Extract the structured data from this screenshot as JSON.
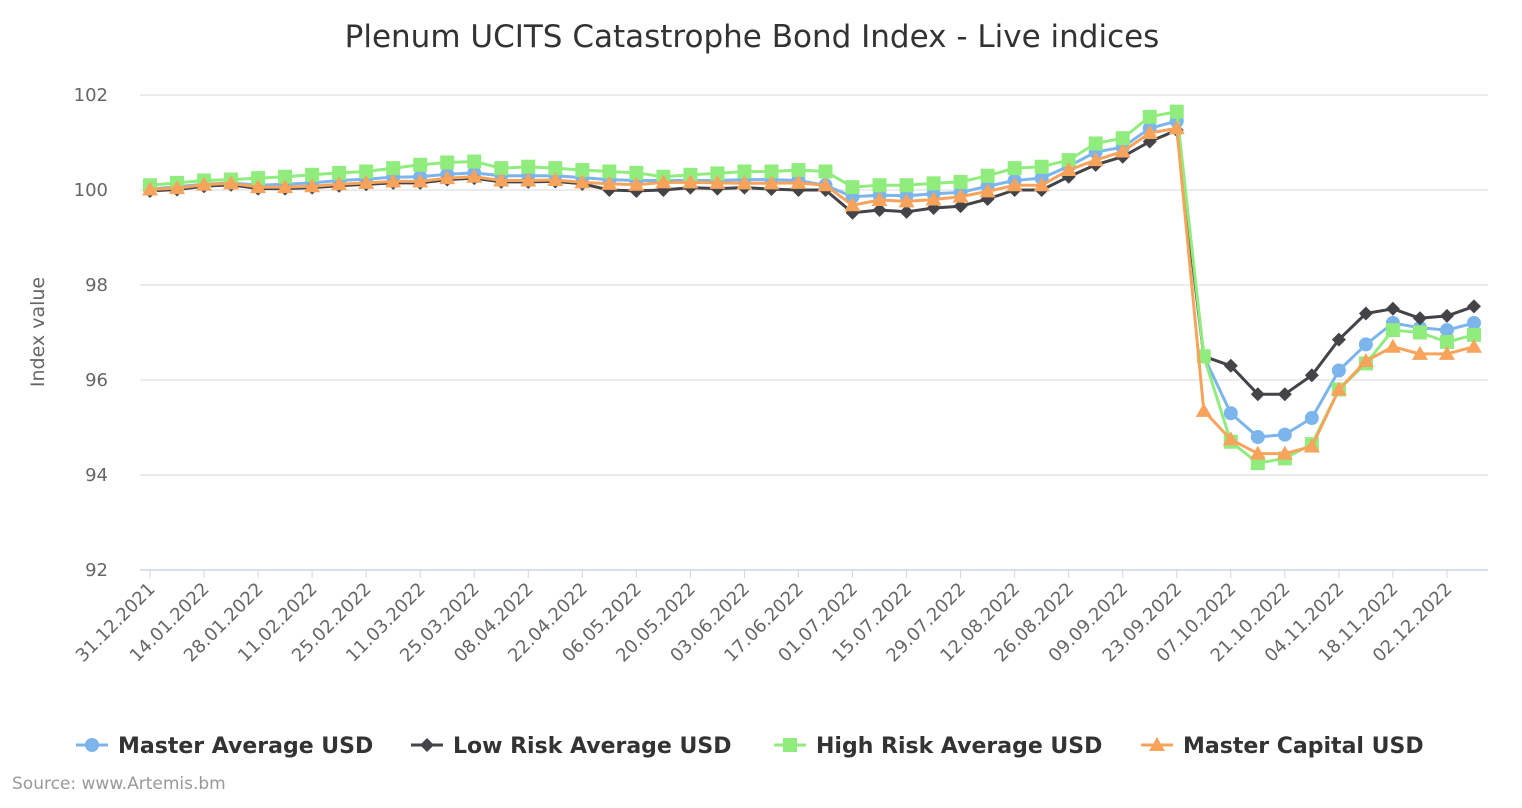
{
  "chart_data": {
    "type": "line",
    "title": "Plenum UCITS Catastrophe Bond Index - Live indices",
    "xlabel": "",
    "ylabel": "Index value",
    "ylim": [
      92,
      102
    ],
    "yticks": [
      92,
      94,
      96,
      98,
      100,
      102
    ],
    "grid": true,
    "legend_placement": "bottom",
    "x": [
      "31.12.2021",
      "07.01.2022",
      "14.01.2022",
      "21.01.2022",
      "28.01.2022",
      "04.02.2022",
      "11.02.2022",
      "18.02.2022",
      "25.02.2022",
      "04.03.2022",
      "11.03.2022",
      "18.03.2022",
      "25.03.2022",
      "01.04.2022",
      "08.04.2022",
      "15.04.2022",
      "22.04.2022",
      "29.04.2022",
      "06.05.2022",
      "13.05.2022",
      "20.05.2022",
      "27.05.2022",
      "03.06.2022",
      "10.06.2022",
      "17.06.2022",
      "24.06.2022",
      "01.07.2022",
      "08.07.2022",
      "15.07.2022",
      "22.07.2022",
      "29.07.2022",
      "05.08.2022",
      "12.08.2022",
      "19.08.2022",
      "26.08.2022",
      "02.09.2022",
      "09.09.2022",
      "16.09.2022",
      "23.09.2022",
      "30.09.2022",
      "07.10.2022",
      "14.10.2022",
      "21.10.2022",
      "28.10.2022",
      "04.11.2022",
      "11.11.2022",
      "18.11.2022",
      "25.11.2022",
      "02.12.2022",
      "09.12.2022"
    ],
    "xtick_labels": [
      "31.12.2021",
      "14.01.2022",
      "28.01.2022",
      "11.02.2022",
      "25.02.2022",
      "11.03.2022",
      "25.03.2022",
      "08.04.2022",
      "22.04.2022",
      "06.05.2022",
      "20.05.2022",
      "03.06.2022",
      "17.06.2022",
      "01.07.2022",
      "15.07.2022",
      "29.07.2022",
      "12.08.2022",
      "26.08.2022",
      "09.09.2022",
      "23.09.2022",
      "07.10.2022",
      "21.10.2022",
      "04.11.2022",
      "18.11.2022",
      "02.12.2022"
    ],
    "series": [
      {
        "name": "Master Average USD",
        "color": "#7cb5ec",
        "marker": "circle",
        "values": [
          100.02,
          100.07,
          100.12,
          100.15,
          100.1,
          100.12,
          100.15,
          100.2,
          100.23,
          100.27,
          100.28,
          100.33,
          100.36,
          100.3,
          100.3,
          100.3,
          100.26,
          100.22,
          100.2,
          100.2,
          100.2,
          100.2,
          100.22,
          100.22,
          100.2,
          100.1,
          99.86,
          99.89,
          99.88,
          99.92,
          99.95,
          100.08,
          100.2,
          100.25,
          100.5,
          100.8,
          100.9,
          101.3,
          101.45,
          96.5,
          95.3,
          94.8,
          94.85,
          95.2,
          96.2,
          96.75,
          97.2,
          97.1,
          97.05,
          97.2
        ]
      },
      {
        "name": "Low Risk Average USD",
        "color": "#434348",
        "marker": "diamond",
        "values": [
          99.98,
          100.01,
          100.08,
          100.11,
          100.03,
          100.03,
          100.05,
          100.09,
          100.12,
          100.15,
          100.15,
          100.22,
          100.25,
          100.17,
          100.17,
          100.18,
          100.13,
          100.0,
          99.98,
          100.0,
          100.05,
          100.03,
          100.05,
          100.02,
          100.0,
          100.0,
          99.52,
          99.58,
          99.54,
          99.62,
          99.66,
          99.81,
          100.0,
          100.0,
          100.28,
          100.53,
          100.7,
          101.02,
          101.26,
          96.5,
          96.3,
          95.7,
          95.7,
          96.1,
          96.85,
          97.4,
          97.5,
          97.3,
          97.35,
          97.55
        ]
      },
      {
        "name": "High Risk Average USD",
        "color": "#90ed7d",
        "marker": "square",
        "values": [
          100.1,
          100.15,
          100.2,
          100.22,
          100.25,
          100.28,
          100.32,
          100.36,
          100.39,
          100.46,
          100.53,
          100.58,
          100.6,
          100.46,
          100.49,
          100.46,
          100.42,
          100.39,
          100.36,
          100.28,
          100.32,
          100.35,
          100.39,
          100.39,
          100.42,
          100.39,
          100.06,
          100.1,
          100.1,
          100.14,
          100.17,
          100.3,
          100.46,
          100.49,
          100.63,
          100.98,
          101.09,
          101.54,
          101.65,
          96.5,
          94.7,
          94.25,
          94.35,
          94.65,
          95.8,
          96.35,
          97.05,
          97.0,
          96.8,
          96.95
        ]
      },
      {
        "name": "Master Capital USD",
        "color": "#f7a35c",
        "marker": "triangle",
        "values": [
          100.01,
          100.04,
          100.11,
          100.14,
          100.06,
          100.06,
          100.08,
          100.12,
          100.15,
          100.18,
          100.18,
          100.25,
          100.28,
          100.2,
          100.2,
          100.21,
          100.16,
          100.13,
          100.11,
          100.16,
          100.16,
          100.15,
          100.14,
          100.14,
          100.15,
          100.1,
          99.68,
          99.79,
          99.76,
          99.8,
          99.86,
          99.97,
          100.1,
          100.1,
          100.42,
          100.63,
          100.81,
          101.2,
          101.3,
          95.35,
          94.75,
          94.45,
          94.45,
          94.6,
          95.8,
          96.4,
          96.7,
          96.55,
          96.55,
          96.7
        ]
      }
    ],
    "source": "Source: www.Artemis.bm"
  }
}
